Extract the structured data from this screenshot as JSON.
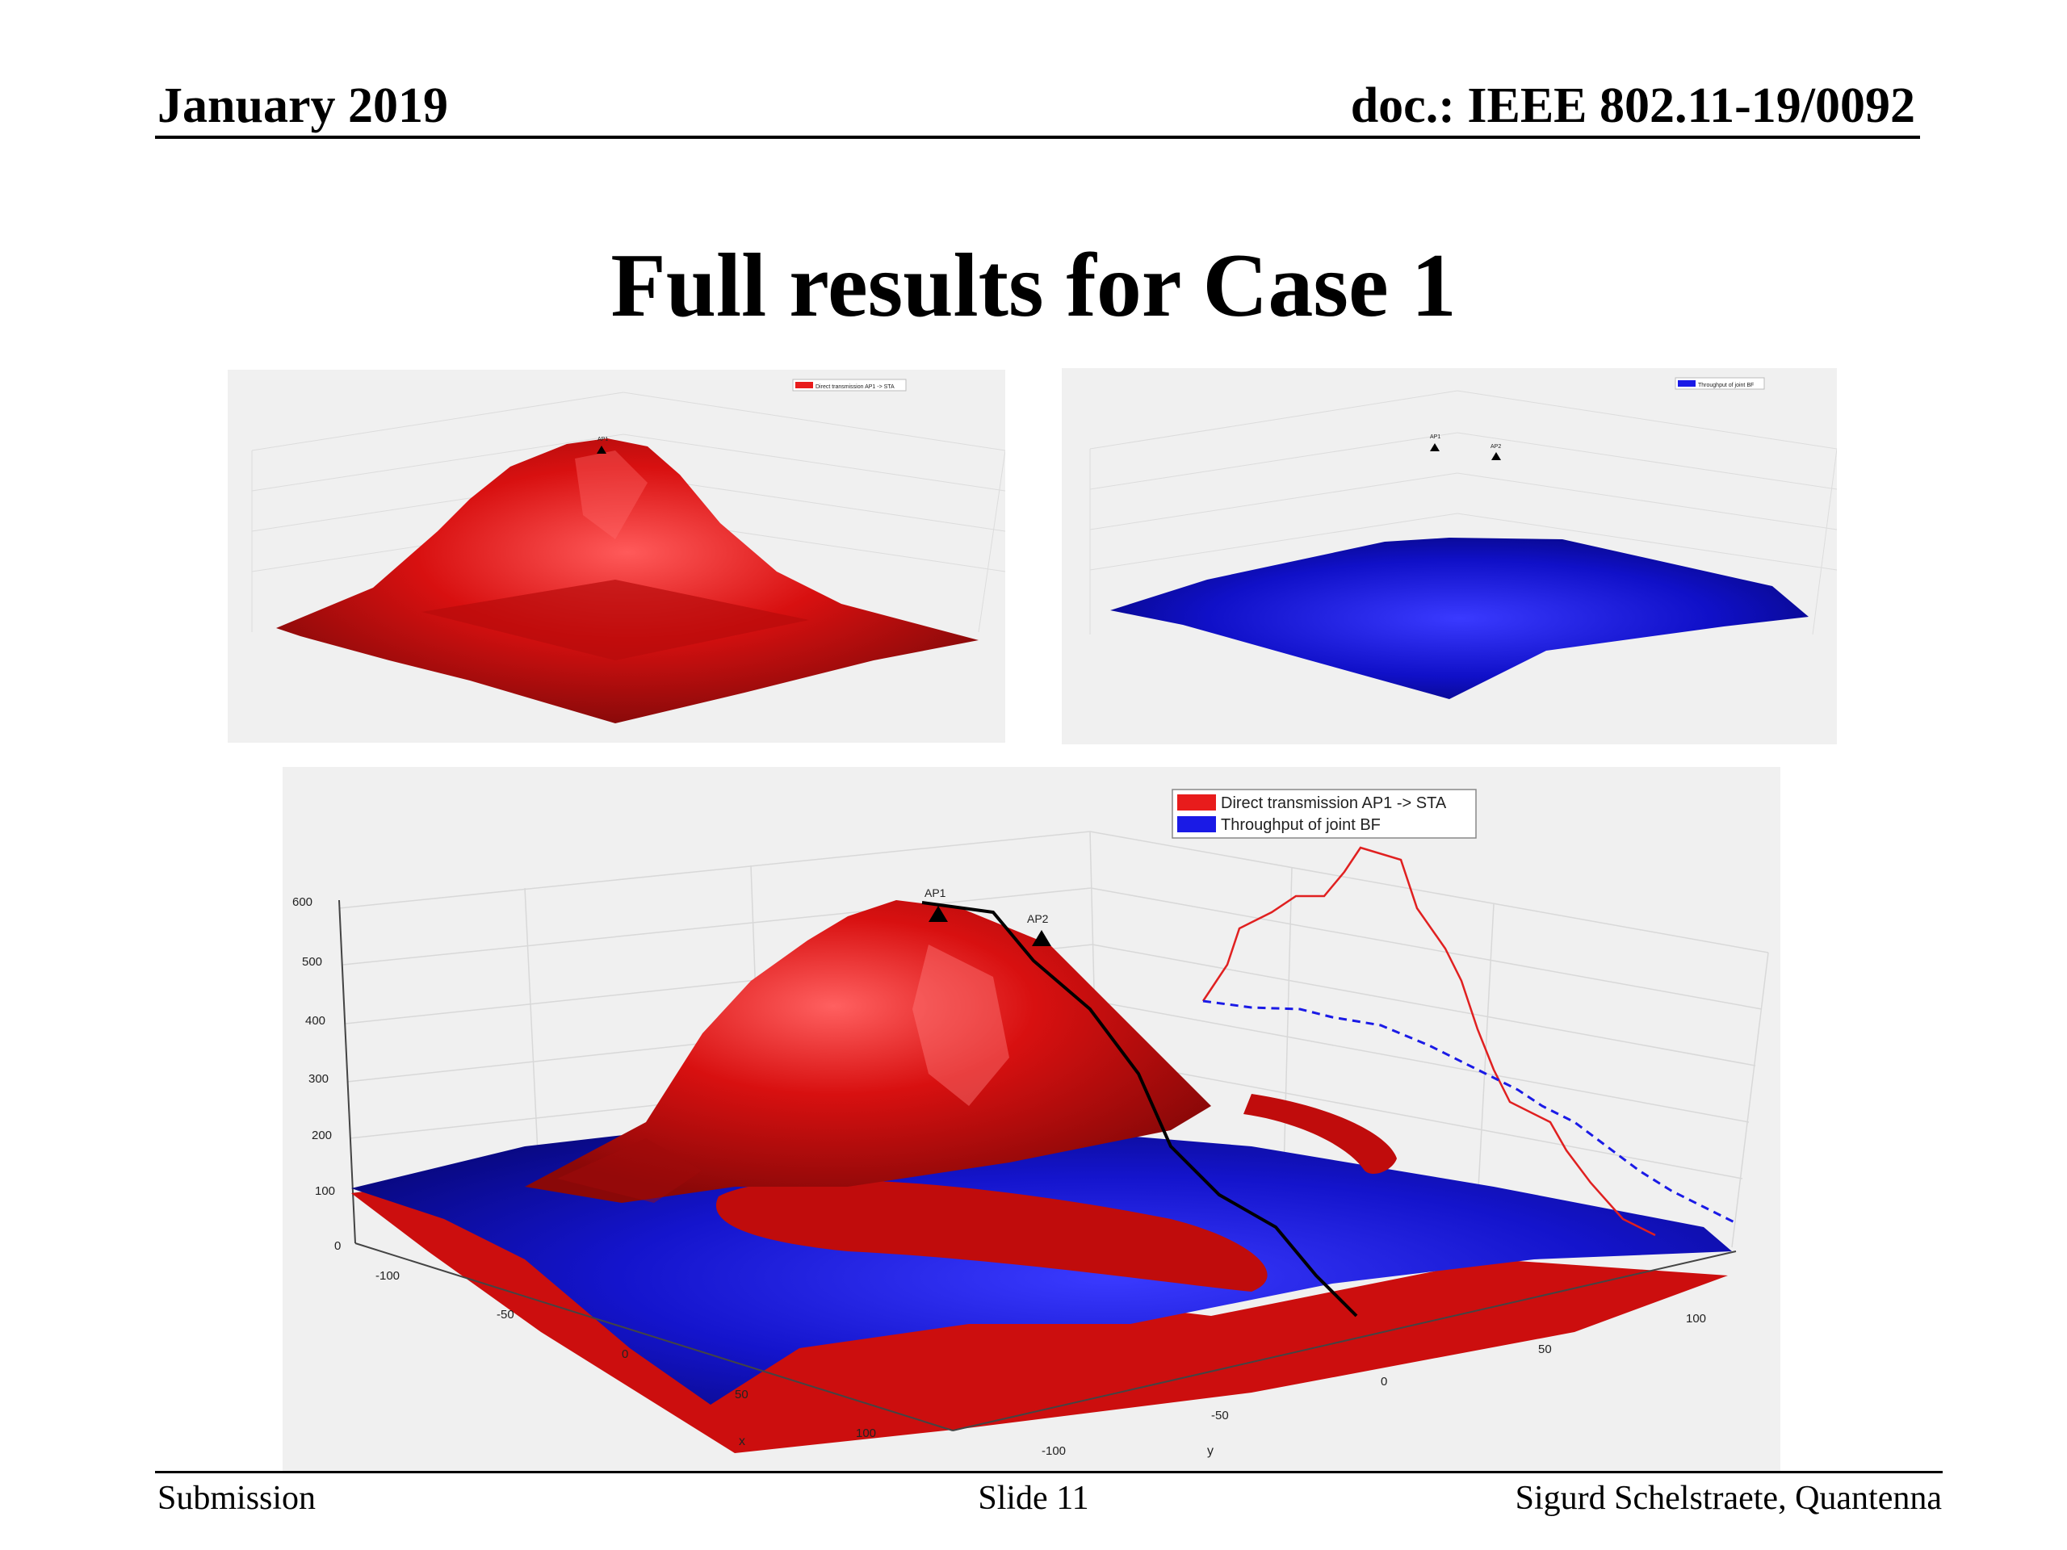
{
  "header": {
    "date": "January 2019",
    "doc": "doc.: IEEE 802.11-19/0092"
  },
  "title": "Full results for Case 1",
  "figures": {
    "top_left": {
      "legend": "Direct transmission AP1 -> STA",
      "marker": "AP1",
      "surface_color": "#d81010"
    },
    "top_right": {
      "legend": "Throughput of joint BF",
      "markers": [
        "AP1",
        "AP2"
      ],
      "surface_color": "#1010c8"
    },
    "bottom": {
      "legend": [
        {
          "label": "Direct transmission AP1 -> STA",
          "color": "#e81c1c"
        },
        {
          "label": "Throughput of joint BF",
          "color": "#1a1ae6"
        }
      ],
      "markers": [
        "AP1",
        "AP2"
      ],
      "z_ticks": [
        "600",
        "500",
        "400",
        "300",
        "200",
        "100",
        "0"
      ],
      "x_ticks": [
        "-100",
        "-50",
        "0",
        "50",
        "100"
      ],
      "y_ticks": [
        "-100",
        "-50",
        "0",
        "50",
        "100"
      ],
      "xlabel": "x",
      "ylabel": "y"
    }
  },
  "footer": {
    "left": "Submission",
    "center": "Slide 11",
    "right": "Sigurd Schelstraete, Quantenna"
  }
}
